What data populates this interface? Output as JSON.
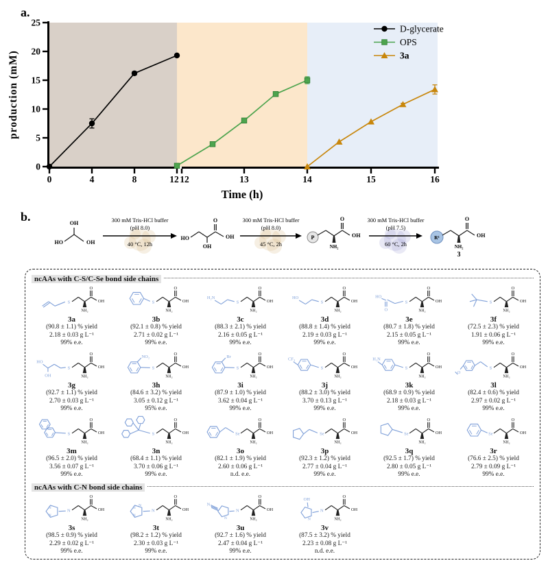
{
  "panel_a": {
    "label": "a.",
    "chart_data": {
      "type": "line",
      "xlabel": "Time (h)",
      "ylabel": "production (mM)",
      "ylim": [
        0,
        25
      ],
      "yticks": [
        0,
        5,
        10,
        15,
        20,
        25
      ],
      "axis_break": true,
      "segments": [
        {
          "xlim": [
            0,
            12
          ],
          "ticks": [
            0,
            4,
            8,
            12
          ],
          "bg": "#D9D0C8"
        },
        {
          "xlim": [
            12,
            14
          ],
          "ticks": [
            12,
            13,
            14
          ],
          "bg": "#FCE7CB"
        },
        {
          "xlim": [
            14,
            16
          ],
          "ticks": [
            15,
            16
          ],
          "bg": "#E7EEF8"
        }
      ],
      "series": [
        {
          "name": "D-glycerate",
          "color": "#000000",
          "marker": "circle",
          "x": [
            0,
            4,
            8,
            12
          ],
          "y": [
            0,
            7.5,
            16.2,
            19.3
          ],
          "err": [
            0,
            0.8,
            0.3,
            0.2
          ]
        },
        {
          "name": "OPS",
          "color": "#4DA44E",
          "marker": "square",
          "x": [
            12,
            12.5,
            13,
            13.5,
            14
          ],
          "y": [
            0.15,
            3.9,
            8.0,
            12.6,
            15.0
          ],
          "err": [
            0,
            0,
            0,
            0.2,
            0.6
          ]
        },
        {
          "name": "3a",
          "color": "#C8860B",
          "marker": "triangle",
          "x": [
            14,
            14.5,
            15,
            15.5,
            16
          ],
          "y": [
            0,
            4.3,
            7.8,
            10.8,
            13.4
          ],
          "err": [
            0,
            0,
            0,
            0.2,
            0.8
          ]
        }
      ],
      "legend": [
        "D-glycerate",
        "OPS",
        "3a"
      ],
      "legend_position": "top-right",
      "grid": false
    }
  },
  "panel_b": {
    "label": "b.",
    "scheme": {
      "steps": [
        {
          "buffer": "300 mM Tris-HCl buffer",
          "ph": "(pH 8.0)",
          "cond": "40 °C, 12h"
        },
        {
          "buffer": "300 mM Tris-HCl buffer",
          "ph": "(pH 8.0)",
          "cond": "45 °C, 2h"
        },
        {
          "buffer": "300 mM Tris-HCl buffer",
          "ph": "(pH 7.5)",
          "cond": "60 °C, 2h"
        }
      ],
      "molecules": {
        "glycerol": {
          "ho": "HO",
          "oh_top": "OH",
          "oh_right": "OH"
        },
        "d_glycerate": {
          "ho": "HO",
          "oh_below": "OH",
          "o": "O",
          "oh": "OH"
        },
        "ops": {
          "p": "P",
          "o": "O",
          "oh": "OH",
          "nh2": "NH₂"
        },
        "product": {
          "r": "R¹",
          "o": "O",
          "oh": "OH",
          "nh2": "NH₂",
          "num": "3"
        }
      }
    },
    "sections": [
      {
        "title": "ncAAs with C-S/C-Se bond side chains",
        "compounds": [
          "3a",
          "3b",
          "3c",
          "3d",
          "3e",
          "3f",
          "3g",
          "3h",
          "3i",
          "3j",
          "3k",
          "3l",
          "3m",
          "3n",
          "3o",
          "3p",
          "3q",
          "3r"
        ]
      },
      {
        "title": "ncAAs with C-N bond side chains",
        "compounds": [
          "3s",
          "3t",
          "3u",
          "3v"
        ]
      }
    ],
    "struct_labels": {
      "nh2": "NH₂",
      "o": "O",
      "oh": "OH"
    },
    "compounds": [
      {
        "id": "3a",
        "sidechain": "allyl",
        "hetero": "S",
        "yield": "(90.8 ± 1.1) % yield",
        "titer": "2.18 ± 0.03 g L⁻¹",
        "ee": "99% e.e."
      },
      {
        "id": "3b",
        "sidechain": "phenyl",
        "hetero": "S",
        "yield": "(92.1 ± 0.8) % yield",
        "titer": "2.71 ± 0.02 g L⁻¹",
        "ee": "99% e.e."
      },
      {
        "id": "3c",
        "sidechain": "aminoethyl",
        "hetero": "S",
        "yield": "(88.3 ± 2.1) % yield",
        "titer": "2.16 ± 0.05 g L⁻¹",
        "ee": "99% e.e."
      },
      {
        "id": "3d",
        "sidechain": "hydroxyethyl",
        "hetero": "S",
        "yield": "(88.8 ± 1.4) % yield",
        "titer": "2.19 ± 0.03 g L⁻¹",
        "ee": "99% e.e."
      },
      {
        "id": "3e",
        "sidechain": "carboxymethyl",
        "hetero": "S",
        "yield": "(80.7 ± 1.8) % yield",
        "titer": "2.15 ± 0.05 g L⁻¹",
        "ee": "99% e.e."
      },
      {
        "id": "3f",
        "sidechain": "tbutyl",
        "hetero": "S",
        "yield": "(72.5 ± 2.3) % yield",
        "titer": "1.91 ± 0.06 g L⁻¹",
        "ee": "99% e.e."
      },
      {
        "id": "3g",
        "sidechain": "dihydroxypropyl",
        "hetero": "S",
        "yield": "(92.7 ± 1.1) % yield",
        "titer": "2.70 ± 0.03 g L⁻¹",
        "ee": "99% e.e."
      },
      {
        "id": "3h",
        "sidechain": "nitrophenyl",
        "hetero": "S",
        "yield": "(84.6 ± 3.2) % yield",
        "titer": "3.05 ± 0.12 g L⁻¹",
        "ee": "95% e.e."
      },
      {
        "id": "3i",
        "sidechain": "bromophenyl",
        "hetero": "S",
        "yield": "(87.9 ± 1.0) % yield",
        "titer": "3.62 ± 0.04 g L⁻¹",
        "ee": "99% e.e."
      },
      {
        "id": "3j",
        "sidechain": "cf3phenyl",
        "hetero": "S",
        "yield": "(88.2 ± 3.0) % yield",
        "titer": "3.70 ± 0.13 g L⁻¹",
        "ee": "99% e.e."
      },
      {
        "id": "3k",
        "sidechain": "aminophenyl",
        "hetero": "S",
        "yield": "(68.9 ± 0.9) % yield",
        "titer": "2.18 ± 0.03 g L⁻¹",
        "ee": "99% e.e."
      },
      {
        "id": "3l",
        "sidechain": "methoxybenzyl",
        "hetero": "S",
        "yield": "(82.4 ± 0.6) % yield",
        "titer": "2.97 ± 0.02 g L⁻¹",
        "ee": "99% e.e."
      },
      {
        "id": "3m",
        "sidechain": "naphthyl",
        "hetero": "S",
        "yield": "(96.5 ± 2.0) % yield",
        "titer": "3.56 ± 0.07 g L⁻¹",
        "ee": "99% e.e."
      },
      {
        "id": "3n",
        "sidechain": "trityl",
        "hetero": "S",
        "yield": "(68.4 ± 1.1) % yield",
        "titer": "3.70 ± 0.06 g L⁻¹",
        "ee": "99% e.e."
      },
      {
        "id": "3o",
        "sidechain": "benzyl",
        "hetero": "Se",
        "yield": "(82.1 ± 1.9) % yield",
        "titer": "2.60 ± 0.06 g L⁻¹",
        "ee": "n.d. e.e."
      },
      {
        "id": "3p",
        "sidechain": "thienylmethyl",
        "hetero": "Se",
        "yield": "(92.3 ± 1.2) % yield",
        "titer": "2.77 ± 0.04 g L⁻¹",
        "ee": "99% e.e."
      },
      {
        "id": "3q",
        "sidechain": "thienyl",
        "hetero": "Se",
        "yield": "(92.5 ± 1.7) % yield",
        "titer": "2.80 ± 0.05 g L⁻¹",
        "ee": "99% e.e."
      },
      {
        "id": "3r",
        "sidechain": "phenyl",
        "hetero": "Se",
        "yield": "(76.6 ± 2.5) % yield",
        "titer": "2.79 ± 0.09 g L⁻¹",
        "ee": "99% e.e."
      },
      {
        "id": "3s",
        "sidechain": "triazolyl",
        "hetero": "N",
        "yield": "(98.5 ± 0.9) % yield",
        "titer": "2.29 ± 0.02 g L⁻¹",
        "ee": "99% e.e."
      },
      {
        "id": "3t",
        "sidechain": "tetrazolyl",
        "hetero": "N",
        "yield": "(98.2 ± 1.2) % yield",
        "titer": "2.30 ± 0.03 g L⁻¹",
        "ee": "99% e.e."
      },
      {
        "id": "3u",
        "sidechain": "cyanopyrazolyl",
        "hetero": "N",
        "yield": "(92.7 ± 1.6) % yield",
        "titer": "2.47 ± 0.04 g L⁻¹",
        "ee": "99% e.e."
      },
      {
        "id": "3v",
        "sidechain": "hydroxypyrazolyl",
        "hetero": "N",
        "yield": "(87.5 ± 3.2) % yield",
        "titer": "2.23 ± 0.08 g L⁻¹",
        "ee": "n.d. e.e."
      }
    ],
    "colors": {
      "sidechain_blue": "#7E9FD8",
      "bond_black": "#222222",
      "enzyme_tan": "#D8B77E",
      "enzyme_purple": "#9B9BD0",
      "p_circle": "#E6E6E6",
      "r_circle": "#A8C4E4"
    }
  }
}
